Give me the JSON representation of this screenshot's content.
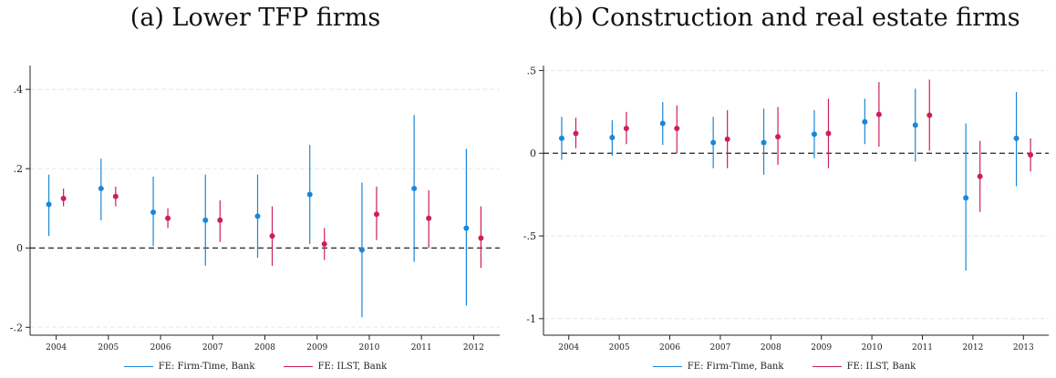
{
  "colors": {
    "blue": "#1a86d9",
    "red": "#cc1f5c",
    "zero_line": "#222222",
    "grid": "#e8e8e8"
  },
  "legend": {
    "blue_label": "FE: Firm-Time, Bank",
    "red_label": "FE: ILST, Bank"
  },
  "chart_data": [
    {
      "type": "scatter",
      "title": "(a) Lower TFP firms",
      "xlabel": "",
      "ylabel": "",
      "categories": [
        "2004",
        "2005",
        "2006",
        "2007",
        "2008",
        "2009",
        "2010",
        "2011",
        "2012"
      ],
      "ylim": [
        -0.22,
        0.46
      ],
      "yticks": [
        -0.2,
        0,
        0.2,
        0.4
      ],
      "ytick_labels": [
        "-.2",
        "0",
        ".2",
        ".4"
      ],
      "grid": true,
      "reference_line": 0,
      "legend_position": "bottom",
      "series": [
        {
          "name": "FE: Firm-Time, Bank",
          "color": "#1a86d9",
          "values": [
            0.11,
            0.15,
            0.09,
            0.07,
            0.08,
            0.135,
            -0.005,
            0.15,
            0.05
          ],
          "ci_low": [
            0.03,
            0.07,
            0.005,
            -0.045,
            -0.025,
            0.01,
            -0.175,
            -0.035,
            -0.145
          ],
          "ci_high": [
            0.185,
            0.225,
            0.18,
            0.185,
            0.185,
            0.26,
            0.165,
            0.335,
            0.25
          ]
        },
        {
          "name": "FE: ILST, Bank",
          "color": "#cc1f5c",
          "values": [
            0.125,
            0.13,
            0.075,
            0.07,
            0.03,
            0.01,
            0.085,
            0.075,
            0.025
          ],
          "ci_low": [
            0.105,
            0.105,
            0.05,
            0.015,
            -0.045,
            -0.03,
            0.02,
            0.0,
            -0.05
          ],
          "ci_high": [
            0.15,
            0.155,
            0.1,
            0.12,
            0.105,
            0.05,
            0.155,
            0.145,
            0.105
          ]
        }
      ]
    },
    {
      "type": "scatter",
      "title": "(b) Construction and real estate firms",
      "xlabel": "",
      "ylabel": "",
      "categories": [
        "2004",
        "2005",
        "2006",
        "2007",
        "2008",
        "2009",
        "2010",
        "2011",
        "2012",
        "2013"
      ],
      "ylim": [
        -1.1,
        0.53
      ],
      "yticks": [
        -1,
        -0.5,
        0,
        0.5
      ],
      "ytick_labels": [
        "-1",
        "-.5",
        "0",
        ".5"
      ],
      "grid": true,
      "reference_line": 0,
      "legend_position": "bottom",
      "series": [
        {
          "name": "FE: Firm-Time, Bank",
          "color": "#1a86d9",
          "values": [
            0.09,
            0.095,
            0.18,
            0.065,
            0.065,
            0.115,
            0.19,
            0.17,
            -0.27,
            0.09
          ],
          "ci_low": [
            -0.04,
            -0.015,
            0.05,
            -0.09,
            -0.13,
            -0.03,
            0.055,
            -0.05,
            -0.71,
            -0.2
          ],
          "ci_high": [
            0.22,
            0.2,
            0.31,
            0.22,
            0.27,
            0.26,
            0.33,
            0.39,
            0.18,
            0.37
          ]
        },
        {
          "name": "FE: ILST, Bank",
          "color": "#cc1f5c",
          "values": [
            0.12,
            0.15,
            0.15,
            0.085,
            0.1,
            0.12,
            0.235,
            0.23,
            -0.14,
            -0.01
          ],
          "ci_low": [
            0.03,
            0.055,
            0.0,
            -0.09,
            -0.07,
            -0.09,
            0.04,
            0.015,
            -0.355,
            -0.11
          ],
          "ci_high": [
            0.215,
            0.25,
            0.29,
            0.26,
            0.28,
            0.33,
            0.43,
            0.445,
            0.075,
            0.09
          ]
        }
      ]
    }
  ]
}
